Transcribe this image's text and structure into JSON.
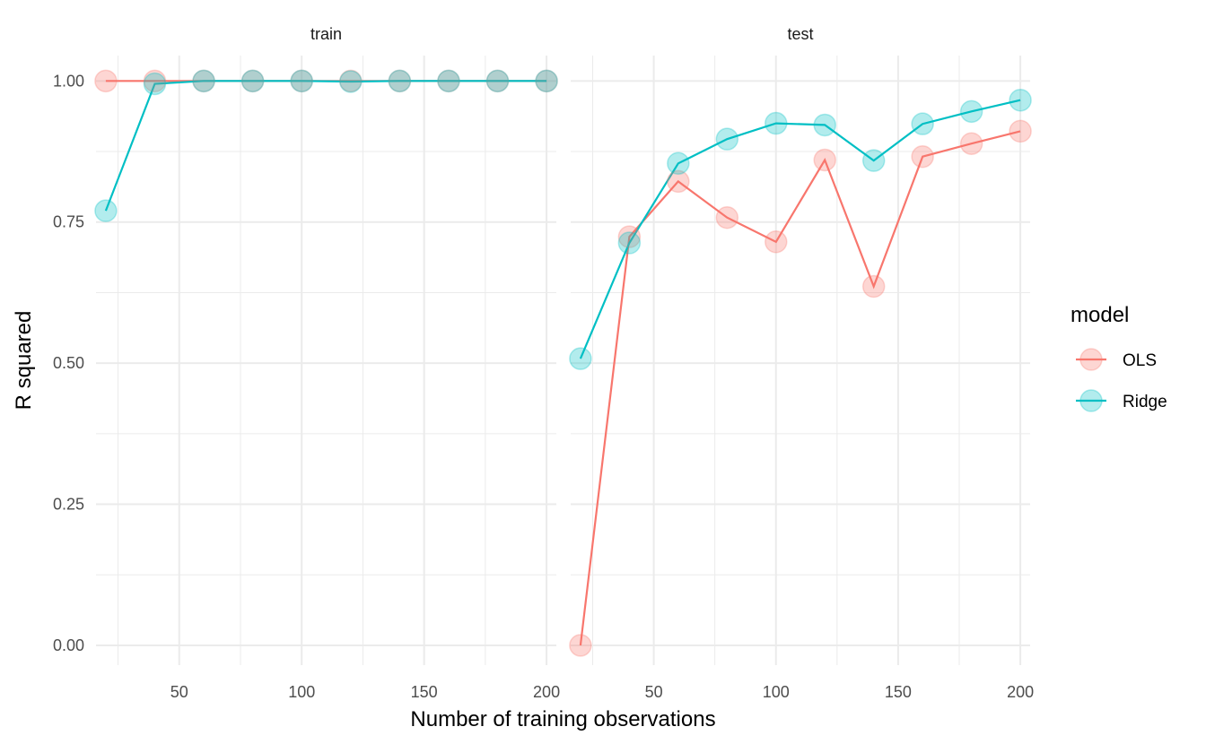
{
  "chart_data": {
    "type": "line",
    "facets": [
      {
        "label": "train",
        "series": [
          {
            "name": "OLS",
            "x": [
              20,
              40,
              60,
              80,
              100,
              120,
              140,
              160,
              180,
              200
            ],
            "values": [
              1.0,
              1.0,
              1.0,
              1.0,
              1.0,
              1.0,
              1.0,
              1.0,
              1.0,
              1.0
            ]
          },
          {
            "name": "Ridge",
            "x": [
              20,
              40,
              60,
              80,
              100,
              120,
              140,
              160,
              180,
              200
            ],
            "values": [
              0.77,
              0.995,
              1.0,
              1.0,
              1.0,
              0.999,
              1.0,
              1.0,
              1.0,
              1.0
            ]
          }
        ]
      },
      {
        "label": "test",
        "series": [
          {
            "name": "OLS",
            "x": [
              20,
              40,
              60,
              80,
              100,
              120,
              140,
              160,
              180,
              200
            ],
            "values": [
              0.0,
              0.724,
              0.822,
              0.758,
              0.715,
              0.86,
              0.636,
              0.866,
              0.889,
              0.911
            ]
          },
          {
            "name": "Ridge",
            "x": [
              20,
              40,
              60,
              80,
              100,
              120,
              140,
              160,
              180,
              200
            ],
            "values": [
              0.508,
              0.713,
              0.854,
              0.897,
              0.925,
              0.922,
              0.859,
              0.924,
              0.946,
              0.966
            ]
          }
        ]
      }
    ],
    "xlabel": "Number of training observations",
    "ylabel": "R squared",
    "xlim": [
      16,
      204
    ],
    "ylim": [
      -0.035,
      1.045
    ],
    "x_ticks": [
      50,
      100,
      150,
      200
    ],
    "x_minor_ticks": [
      25,
      75,
      125,
      175
    ],
    "y_ticks": [
      0.0,
      0.25,
      0.5,
      0.75,
      1.0
    ],
    "y_tick_labels": [
      "0.00",
      "0.25",
      "0.50",
      "0.75",
      "1.00"
    ],
    "y_minor_ticks": [
      0.125,
      0.375,
      0.625,
      0.875
    ],
    "x_tick_labels": [
      "50",
      "100",
      "150",
      "200"
    ],
    "grid": true,
    "legend": {
      "title": "model",
      "position": "right",
      "entries": [
        "OLS",
        "Ridge"
      ]
    },
    "colors": {
      "OLS": "#F8766D",
      "Ridge": "#00BFC4"
    }
  }
}
